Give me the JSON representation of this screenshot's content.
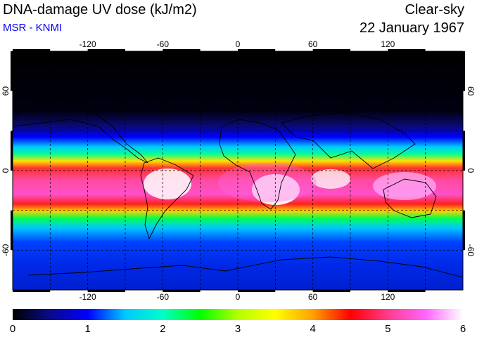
{
  "header": {
    "title": "DNA-damage UV dose (kJ/m2)",
    "source": "MSR - KNMI",
    "sky_condition": "Clear-sky",
    "date": "22 January 1967"
  },
  "map": {
    "projection": "equirectangular",
    "lon_range": [
      -180,
      180
    ],
    "lat_range": [
      -90,
      90
    ],
    "lon_ticks": [
      "-120",
      "-60",
      "0",
      "60",
      "120"
    ],
    "lat_ticks": [
      "60",
      "0",
      "-60"
    ],
    "gridlines": "dashed every 30 degrees",
    "field": "UV dose, maximum near the Southern Hemisphere tropics (southern summer)"
  },
  "colorbar": {
    "min": 0,
    "max": 6,
    "tick_labels": [
      "0",
      "1",
      "2",
      "3",
      "4",
      "5",
      "6"
    ],
    "colors": [
      "#000000",
      "#0a0a8c",
      "#0000ff",
      "#00c8ff",
      "#00ffc8",
      "#00ff00",
      "#b4ff00",
      "#ffff00",
      "#ffa000",
      "#ff0000",
      "#ff3c8c",
      "#ff64ff",
      "#ffffff"
    ]
  }
}
